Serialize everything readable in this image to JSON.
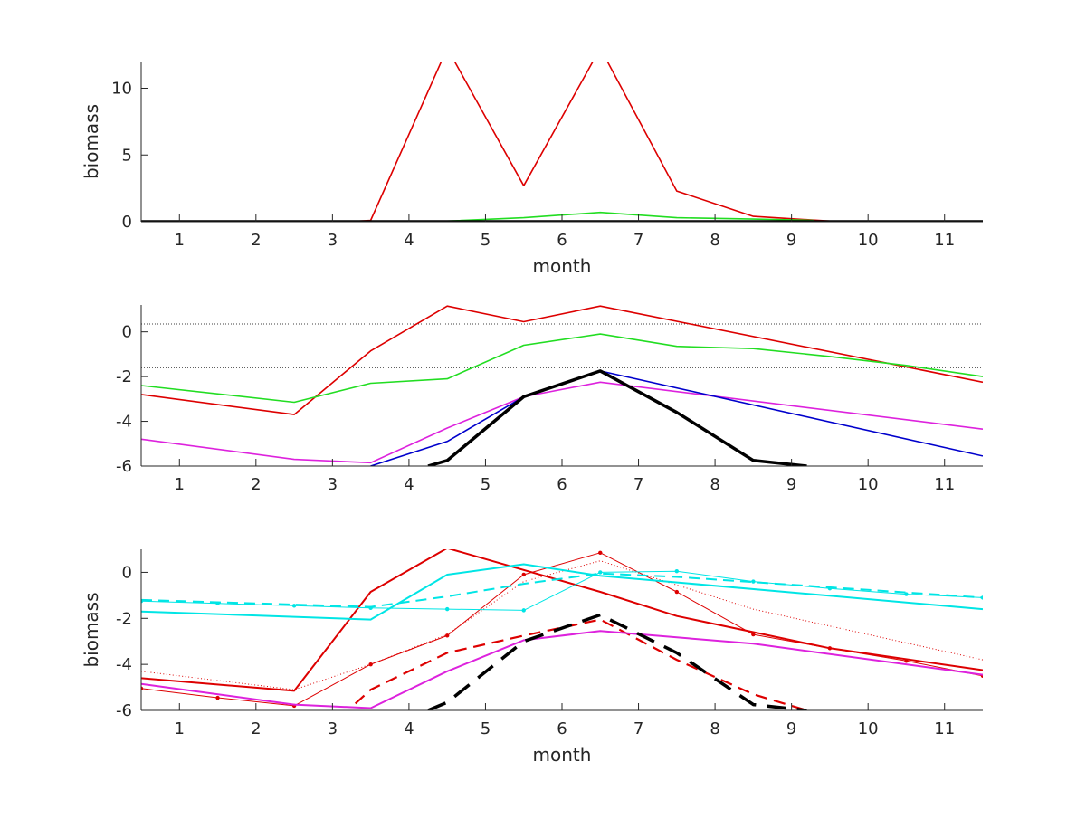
{
  "chart_data": [
    {
      "type": "line",
      "xlabel": "month",
      "ylabel": "biomass",
      "xlim": [
        0.5,
        11.5
      ],
      "ylim": [
        0,
        12
      ],
      "xticks": [
        1,
        2,
        3,
        4,
        5,
        6,
        7,
        8,
        9,
        10,
        11
      ],
      "yticks": [
        0,
        5,
        10
      ],
      "series": [
        {
          "color": "#dd0000",
          "width": 1.6,
          "dash": "solid",
          "markers": false,
          "x": [
            3.2,
            3.5,
            4.5,
            5.5,
            6.5,
            7.5,
            8.5,
            9.5
          ],
          "y": [
            0,
            0.1,
            13,
            2.7,
            13,
            2.3,
            0.4,
            0.05
          ]
        },
        {
          "color": "#22dd22",
          "width": 1.6,
          "dash": "solid",
          "markers": false,
          "x": [
            4.5,
            5.5,
            6.5,
            7.5,
            8.5,
            9.3
          ],
          "y": [
            0.05,
            0.3,
            0.7,
            0.3,
            0.2,
            0.1
          ]
        },
        {
          "color": "#000000",
          "width": 3.5,
          "dash": "solid",
          "markers": false,
          "x": [
            0.5,
            11.5
          ],
          "y": [
            0,
            0
          ]
        }
      ]
    },
    {
      "type": "line",
      "xlabel": "",
      "ylabel": "",
      "xlim": [
        0.5,
        11.5
      ],
      "ylim": [
        -6,
        1.2
      ],
      "xticks": [
        1,
        2,
        3,
        4,
        5,
        6,
        7,
        8,
        9,
        10,
        11
      ],
      "yticks": [
        -6,
        -4,
        -2,
        0
      ],
      "hlines": [
        0.35,
        -1.6
      ],
      "series": [
        {
          "color": "#dd0000",
          "width": 1.6,
          "dash": "solid",
          "markers": false,
          "x": [
            0.5,
            2.5,
            3.5,
            4.5,
            5.5,
            6.5,
            11.5
          ],
          "y": [
            -2.8,
            -3.7,
            -0.85,
            1.15,
            0.45,
            1.15,
            -2.25
          ]
        },
        {
          "color": "#22dd22",
          "width": 1.6,
          "dash": "solid",
          "markers": false,
          "x": [
            0.5,
            2.5,
            3.5,
            4.5,
            5.5,
            6.5,
            7.5,
            8.5,
            9.5,
            10.5,
            11.5
          ],
          "y": [
            -2.4,
            -3.15,
            -2.3,
            -2.1,
            -0.6,
            -0.1,
            -0.65,
            -0.75,
            -1.1,
            -1.5,
            -2.0
          ]
        },
        {
          "color": "#dd22dd",
          "width": 1.6,
          "dash": "solid",
          "markers": false,
          "x": [
            0.5,
            2.5,
            3.5,
            4.5,
            5.5,
            6.5,
            11.5
          ],
          "y": [
            -4.8,
            -5.7,
            -5.85,
            -4.3,
            -2.9,
            -2.25,
            -4.35
          ]
        },
        {
          "color": "#0000cc",
          "width": 1.6,
          "dash": "solid",
          "markers": false,
          "x": [
            3.5,
            4.5,
            5.5,
            6.5,
            11.5
          ],
          "y": [
            -6.0,
            -4.9,
            -2.9,
            -1.75,
            -5.55
          ]
        },
        {
          "color": "#000000",
          "width": 3.5,
          "dash": "solid",
          "markers": false,
          "x": [
            4.25,
            4.5,
            5.5,
            6.5,
            7.5,
            8.5,
            9.2
          ],
          "y": [
            -6.0,
            -5.75,
            -2.9,
            -1.75,
            -3.6,
            -5.75,
            -6.0
          ]
        }
      ]
    },
    {
      "type": "line",
      "xlabel": "month",
      "ylabel": "biomass",
      "xlim": [
        0.5,
        11.5
      ],
      "ylim": [
        -6,
        1.0
      ],
      "xticks": [
        1,
        2,
        3,
        4,
        5,
        6,
        7,
        8,
        9,
        10,
        11
      ],
      "yticks": [
        -6,
        -4,
        -2,
        0
      ],
      "series": [
        {
          "color": "#dd0000",
          "width": 2.0,
          "dash": "solid",
          "markers": false,
          "x": [
            0.5,
            2.5,
            3.5,
            4.5,
            6.5,
            7.5,
            8.5,
            9.5,
            11.5
          ],
          "y": [
            -4.6,
            -5.15,
            -0.85,
            1.05,
            -0.85,
            -1.9,
            -2.6,
            -3.3,
            -4.25
          ]
        },
        {
          "color": "#dd0000",
          "width": 1.0,
          "dash": "solid",
          "markers": true,
          "x": [
            0.5,
            1.5,
            2.5,
            3.5,
            4.5,
            5.5,
            6.5,
            7.5,
            8.5,
            9.5,
            10.5,
            11.5
          ],
          "y": [
            -5.05,
            -5.45,
            -5.8,
            -4.0,
            -2.75,
            -0.1,
            0.85,
            -0.85,
            -2.7,
            -3.3,
            -3.85,
            -4.5
          ]
        },
        {
          "color": "#dd0000",
          "width": 1.0,
          "dash": "dotted",
          "markers": false,
          "x": [
            0.5,
            2.5,
            3.5,
            4.5,
            5.5,
            6.5,
            8.5,
            11.5
          ],
          "y": [
            -4.3,
            -5.1,
            -4.0,
            -2.7,
            -0.4,
            0.5,
            -1.6,
            -3.8
          ]
        },
        {
          "color": "#dd0000",
          "width": 2.2,
          "dash": "dashed",
          "markers": false,
          "x": [
            3.3,
            3.5,
            4.5,
            5.5,
            6.5,
            7.5,
            8.5,
            9.2
          ],
          "y": [
            -5.7,
            -5.1,
            -3.5,
            -2.75,
            -2.05,
            -3.8,
            -5.3,
            -6.0
          ]
        },
        {
          "color": "#00e5e5",
          "width": 1.0,
          "dash": "solid",
          "markers": true,
          "x": [
            0.5,
            1.5,
            2.5,
            3.5,
            4.5,
            5.5,
            6.5,
            7.5,
            8.5,
            9.5,
            10.5,
            11.5
          ],
          "y": [
            -1.25,
            -1.35,
            -1.45,
            -1.55,
            -1.6,
            -1.65,
            0.0,
            0.05,
            -0.4,
            -0.7,
            -0.95,
            -1.1
          ]
        },
        {
          "color": "#00e5e5",
          "width": 2.0,
          "dash": "dashed",
          "markers": false,
          "x": [
            0.5,
            3.5,
            4.5,
            5.5,
            6.5,
            7.5,
            11.5
          ],
          "y": [
            -1.2,
            -1.5,
            -1.05,
            -0.5,
            -0.05,
            -0.2,
            -1.1
          ]
        },
        {
          "color": "#00e5e5",
          "width": 2.0,
          "dash": "solid",
          "markers": false,
          "x": [
            0.5,
            3.5,
            4.5,
            5.5,
            6.5,
            11.5
          ],
          "y": [
            -1.7,
            -2.05,
            -0.1,
            0.35,
            -0.15,
            -1.6
          ]
        },
        {
          "color": "#dd22dd",
          "width": 2.0,
          "dash": "solid",
          "markers": false,
          "x": [
            0.5,
            2.5,
            3.5,
            4.5,
            5.5,
            6.5,
            8.5,
            11.5
          ],
          "y": [
            -4.85,
            -5.75,
            -5.9,
            -4.3,
            -2.95,
            -2.55,
            -3.1,
            -4.45
          ]
        },
        {
          "color": "#000000",
          "width": 3.5,
          "dash": "dashed",
          "markers": false,
          "x": [
            4.25,
            4.5,
            5.5,
            6.5,
            7.5,
            8.5,
            9.2
          ],
          "y": [
            -6.0,
            -5.65,
            -3.0,
            -1.85,
            -3.5,
            -5.75,
            -6.0
          ]
        }
      ]
    }
  ]
}
